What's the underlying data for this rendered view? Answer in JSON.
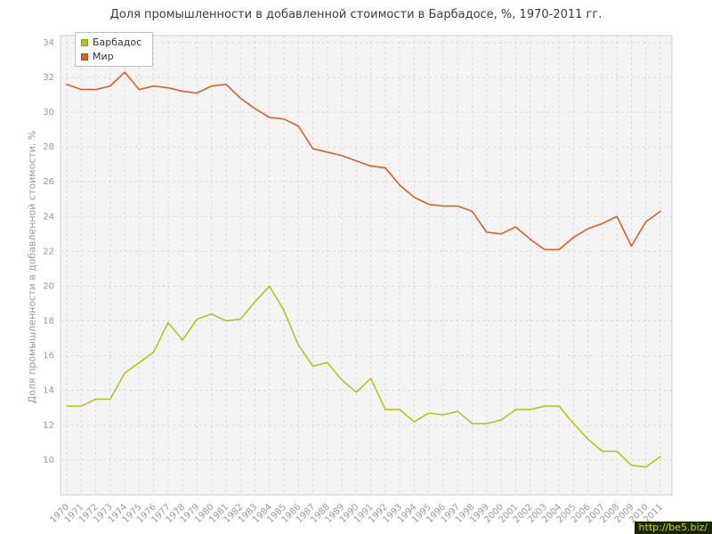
{
  "watermark": {
    "text": "http://be5.biz/"
  },
  "colors": {
    "plot_background": "#f4f4f4",
    "grid": "#dcdcdc",
    "plot_border": "#cfcfcf",
    "axis_text": "#9a9a9a",
    "title_text": "#3c3c3c",
    "watermark_bg": "#1a2400",
    "watermark_text": "#c8dc0f"
  },
  "chart_data": {
    "type": "line",
    "title": "Доля промышленности в добавленной стоимости в Барбадосе, %, 1970-2011 гг.",
    "ylabel": "Доля промышленности в добавленной стоимости, %",
    "xlabel": "",
    "grid": true,
    "legend_position": "top-left",
    "ylim": [
      8,
      34.4
    ],
    "yticks": [
      10,
      12,
      14,
      16,
      18,
      20,
      22,
      24,
      26,
      28,
      30,
      32,
      34
    ],
    "x": [
      1970,
      1971,
      1972,
      1973,
      1974,
      1975,
      1976,
      1977,
      1978,
      1979,
      1980,
      1981,
      1982,
      1983,
      1984,
      1985,
      1986,
      1987,
      1988,
      1989,
      1990,
      1991,
      1992,
      1993,
      1994,
      1995,
      1996,
      1997,
      1998,
      1999,
      2000,
      2001,
      2002,
      2003,
      2004,
      2005,
      2006,
      2007,
      2008,
      2009,
      2010,
      2011
    ],
    "series": [
      {
        "name": "Барбадос",
        "color": "#b3c31f",
        "values": [
          13.1,
          13.1,
          13.5,
          13.5,
          15.0,
          15.6,
          16.2,
          17.9,
          16.9,
          18.1,
          18.4,
          18.0,
          18.1,
          19.1,
          20.0,
          18.6,
          16.6,
          15.4,
          15.6,
          14.6,
          13.9,
          14.7,
          12.9,
          12.9,
          12.2,
          12.7,
          12.6,
          12.8,
          12.1,
          12.1,
          12.3,
          12.9,
          12.9,
          13.1,
          13.1,
          12.1,
          11.2,
          10.5,
          10.5,
          9.7,
          9.6,
          10.2
        ]
      },
      {
        "name": "Мир",
        "color": "#d2622d",
        "values": [
          31.6,
          31.3,
          31.3,
          31.5,
          32.3,
          31.3,
          31.5,
          31.4,
          31.2,
          31.1,
          31.5,
          31.6,
          30.8,
          30.2,
          29.7,
          29.6,
          29.2,
          27.9,
          27.7,
          27.5,
          27.2,
          26.9,
          26.8,
          25.8,
          25.1,
          24.7,
          24.6,
          24.6,
          24.3,
          23.1,
          23.0,
          23.4,
          22.7,
          22.1,
          22.1,
          22.8,
          23.3,
          23.6,
          24.0,
          22.3,
          23.7,
          24.3
        ]
      }
    ]
  }
}
